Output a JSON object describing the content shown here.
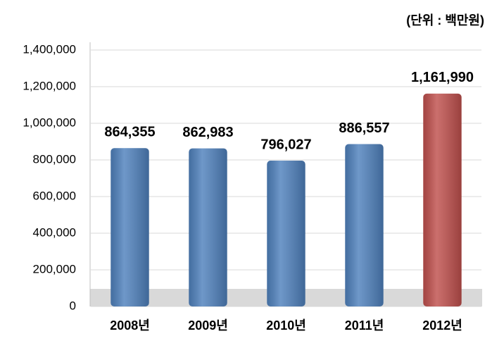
{
  "chart_data": {
    "type": "bar",
    "subtitle": "(단위 : 백만원)",
    "categories": [
      "2008년",
      "2009년",
      "2010년",
      "2011년",
      "2012년"
    ],
    "values": [
      864355,
      862983,
      796027,
      886557,
      1161990
    ],
    "value_labels": [
      "864,355",
      "862,983",
      "796,027",
      "886,557",
      "1,161,990"
    ],
    "colors": [
      "#4f81bd",
      "#4f81bd",
      "#4f81bd",
      "#4f81bd",
      "#c0504d"
    ],
    "ylim": [
      0,
      1400000
    ],
    "yticks": [
      0,
      {
        "value": 200000,
        "label": "200,000"
      },
      {
        "value": 400000,
        "label": "400,000"
      },
      {
        "value": 600000,
        "label": "600,000"
      },
      {
        "value": 800000,
        "label": "800,000"
      },
      {
        "value": 1000000,
        "label": "1,000,000"
      },
      {
        "value": 1200000,
        "label": "1,200,000"
      },
      {
        "value": 1400000,
        "label": "1,400,000"
      }
    ],
    "grid": true
  }
}
